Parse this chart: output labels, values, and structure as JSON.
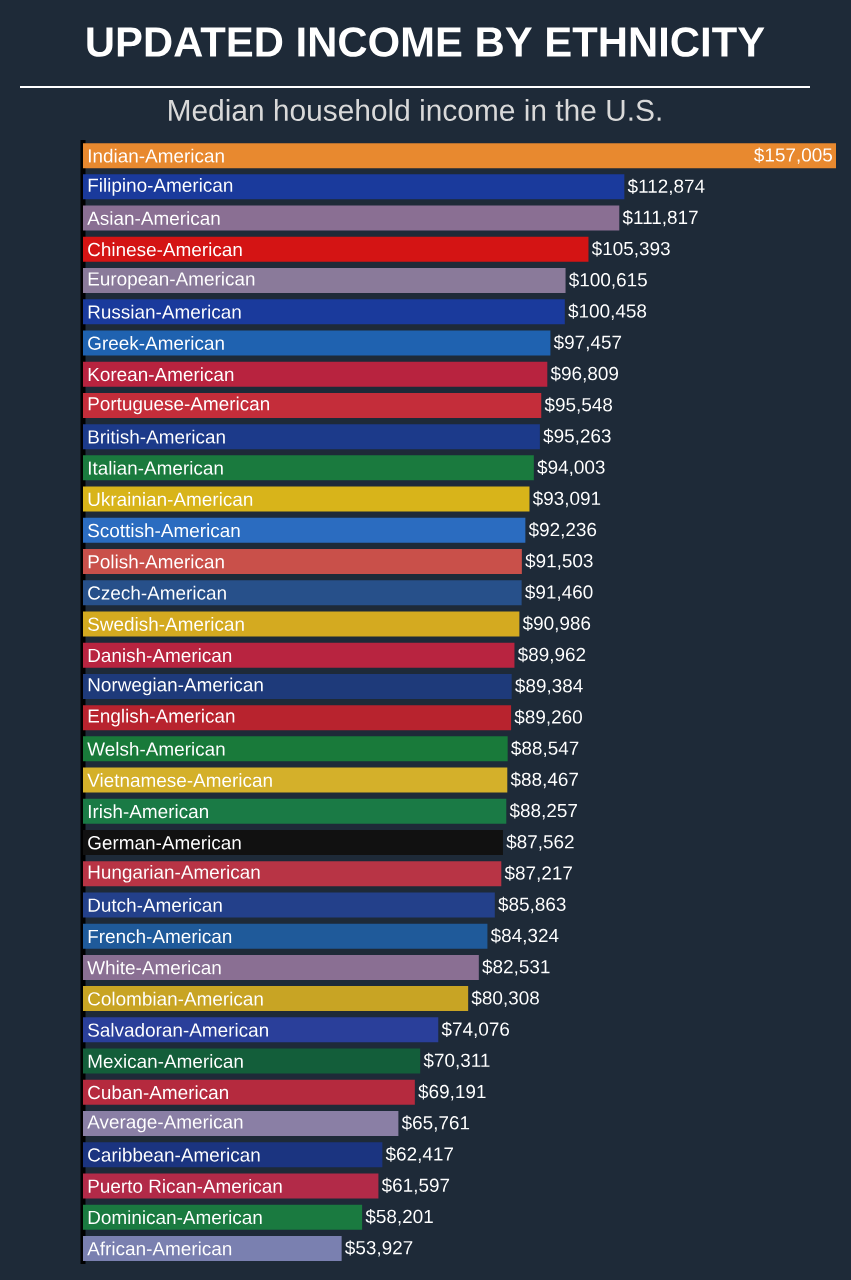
{
  "chart_data": {
    "type": "bar",
    "orientation": "horizontal",
    "title": "UPDATED INCOME BY ETHNICITY",
    "subtitle": "Median household income in the U.S.",
    "categories": [
      "Indian-American",
      "Filipino-American",
      "Asian-American",
      "Chinese-American",
      "European-American",
      "Russian-American",
      "Greek-American",
      "Korean-American",
      "Portuguese-American",
      "British-American",
      "Italian-American",
      "Ukrainian-American",
      "Scottish-American",
      "Polish-American",
      "Czech-American",
      "Swedish-American",
      "Danish-American",
      "Norwegian-American",
      "English-American",
      "Welsh-American",
      "Vietnamese-American",
      "Irish-American",
      "German-American",
      "Hungarian-American",
      "Dutch-American",
      "French-American",
      "White-American",
      "Colombian-American",
      "Salvadoran-American",
      "Mexican-American",
      "Cuban-American",
      "Average-American",
      "Caribbean-American",
      "Puerto Rican-American",
      "Dominican-American",
      "African-American"
    ],
    "values": [
      157005,
      112874,
      111817,
      105393,
      100615,
      100458,
      97457,
      96809,
      95548,
      95263,
      94003,
      93091,
      92236,
      91503,
      91460,
      90986,
      89962,
      89384,
      89260,
      88547,
      88467,
      88257,
      87562,
      87217,
      85863,
      84324,
      82531,
      80308,
      74076,
      70311,
      69191,
      65761,
      62417,
      61597,
      58201,
      53927
    ],
    "value_labels": [
      "$157,005",
      "$112,874",
      "$111,817",
      "$105,393",
      "$100,615",
      "$100,458",
      "$97,457",
      "$96,809",
      "$95,548",
      "$95,263",
      "$94,003",
      "$93,091",
      "$92,236",
      "$91,503",
      "$91,460",
      "$90,986",
      "$89,962",
      "$89,384",
      "$89,260",
      "$88,547",
      "$88,467",
      "$88,257",
      "$87,562",
      "$87,217",
      "$85,863",
      "$84,324",
      "$82,531",
      "$80,308",
      "$74,076",
      "$70,311",
      "$69,191",
      "$65,761",
      "$62,417",
      "$61,597",
      "$58,201",
      "$53,927"
    ],
    "colors": [
      "#e8892f",
      "#1a3a9c",
      "#8a6f93",
      "#d41414",
      "#8a7a9a",
      "#1a3a9c",
      "#1f62b0",
      "#b8233f",
      "#c42d3a",
      "#1c3a8a",
      "#1a7a3e",
      "#d8b41a",
      "#2b6cc0",
      "#c9504a",
      "#27508a",
      "#d4aa20",
      "#b82440",
      "#1e3a7a",
      "#b8232e",
      "#197a3a",
      "#d4b02a",
      "#1a7a45",
      "#111111",
      "#b83445",
      "#23408a",
      "#1f5a9a",
      "#8a6f93",
      "#c8a424",
      "#2a3f9a",
      "#135e3a",
      "#b52a3e",
      "#8a7fa5",
      "#1b3480",
      "#b22a48",
      "#1a7a40",
      "#7a80b0"
    ],
    "xlim": [
      0,
      157005
    ]
  }
}
